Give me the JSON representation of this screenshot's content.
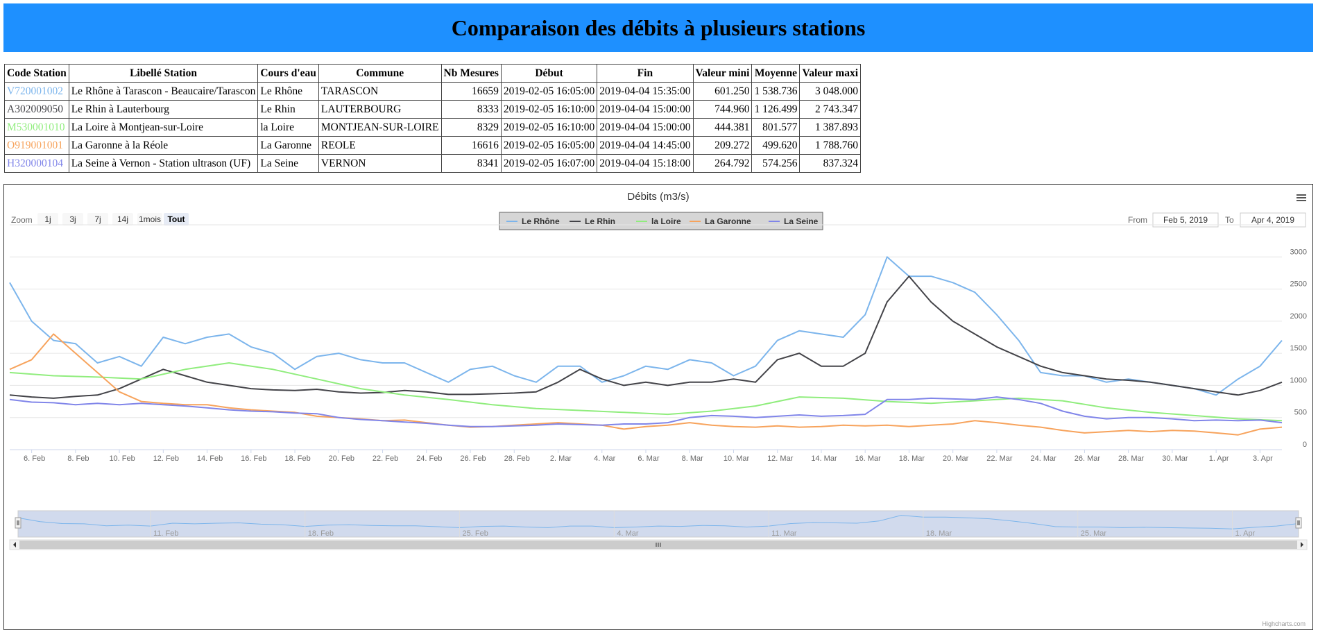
{
  "page": {
    "title": "Comparaison des débits à plusieurs stations"
  },
  "table": {
    "headers": [
      "Code Station",
      "Libellé Station",
      "Cours d'eau",
      "Commune",
      "Nb Mesures",
      "Début",
      "Fin",
      "Valeur mini",
      "Moyenne",
      "Valeur maxi"
    ],
    "rows": [
      {
        "code": "V720001002",
        "code_color": "#7cb5ec",
        "libelle": "Le Rhône à Tarascon - Beaucaire/Tarascon",
        "cours": "Le Rhône",
        "commune": "TARASCON",
        "nb": "16659",
        "debut": "2019-02-05 16:05:00",
        "fin": "2019-04-04 15:35:00",
        "mini": "601.250",
        "moyenne": "1 538.736",
        "maxi": "3 048.000"
      },
      {
        "code": "A302009050",
        "code_color": "#434348",
        "libelle": "Le Rhin à Lauterbourg",
        "cours": "Le Rhin",
        "commune": "LAUTERBOURG",
        "nb": "8333",
        "debut": "2019-02-05 16:10:00",
        "fin": "2019-04-04 15:00:00",
        "mini": "744.960",
        "moyenne": "1 126.499",
        "maxi": "2 743.347"
      },
      {
        "code": "M530001010",
        "code_color": "#90ed7d",
        "libelle": "La Loire à Montjean-sur-Loire",
        "cours": "la Loire",
        "commune": "MONTJEAN-SUR-LOIRE",
        "nb": "8329",
        "debut": "2019-02-05 16:10:00",
        "fin": "2019-04-04 15:00:00",
        "mini": "444.381",
        "moyenne": "801.577",
        "maxi": "1 387.893"
      },
      {
        "code": "O919001001",
        "code_color": "#f7a35c",
        "libelle": "La Garonne à la Réole",
        "cours": "La Garonne",
        "commune": "REOLE",
        "nb": "16616",
        "debut": "2019-02-05 16:05:00",
        "fin": "2019-04-04 14:45:00",
        "mini": "209.272",
        "moyenne": "499.620",
        "maxi": "1 788.760"
      },
      {
        "code": "H320000104",
        "code_color": "#8085e9",
        "libelle": "La Seine à Vernon - Station ultrason (UF)",
        "cours": "La Seine",
        "commune": "VERNON",
        "nb": "8341",
        "debut": "2019-02-05 16:07:00",
        "fin": "2019-04-04 15:18:00",
        "mini": "264.792",
        "moyenne": "574.256",
        "maxi": "837.324"
      }
    ]
  },
  "chart_data": {
    "type": "line",
    "title": "Débits (m3/s)",
    "x_range": [
      "2019-02-05",
      "2019-04-04"
    ],
    "ylim": [
      0,
      3500
    ],
    "y_ticks": [
      0,
      500,
      1000,
      1500,
      2000,
      2500,
      3000
    ],
    "x_ticks": [
      "6. Feb",
      "8. Feb",
      "10. Feb",
      "12. Feb",
      "14. Feb",
      "16. Feb",
      "18. Feb",
      "20. Feb",
      "22. Feb",
      "24. Feb",
      "26. Feb",
      "28. Feb",
      "2. Mar",
      "4. Mar",
      "6. Mar",
      "8. Mar",
      "10. Mar",
      "12. Mar",
      "14. Mar",
      "16. Mar",
      "18. Mar",
      "20. Mar",
      "22. Mar",
      "24. Mar",
      "26. Mar",
      "28. Mar",
      "30. Mar",
      "1. Apr",
      "3. Apr"
    ],
    "navigator_ticks": [
      "11. Feb",
      "18. Feb",
      "25. Feb",
      "4. Mar",
      "11. Mar",
      "18. Mar",
      "25. Mar",
      "1. Apr"
    ],
    "grid": true,
    "legend": "top-center",
    "series": [
      {
        "name": "Le Rhône",
        "color": "#7cb5ec",
        "x": [
          "2019-02-05",
          "2019-02-06",
          "2019-02-07",
          "2019-02-08",
          "2019-02-09",
          "2019-02-10",
          "2019-02-11",
          "2019-02-12",
          "2019-02-13",
          "2019-02-14",
          "2019-02-15",
          "2019-02-16",
          "2019-02-17",
          "2019-02-18",
          "2019-02-19",
          "2019-02-20",
          "2019-02-21",
          "2019-02-22",
          "2019-02-23",
          "2019-02-24",
          "2019-02-25",
          "2019-02-26",
          "2019-02-27",
          "2019-02-28",
          "2019-03-01",
          "2019-03-02",
          "2019-03-03",
          "2019-03-04",
          "2019-03-05",
          "2019-03-06",
          "2019-03-07",
          "2019-03-08",
          "2019-03-09",
          "2019-03-10",
          "2019-03-11",
          "2019-03-12",
          "2019-03-13",
          "2019-03-14",
          "2019-03-15",
          "2019-03-16",
          "2019-03-17",
          "2019-03-18",
          "2019-03-19",
          "2019-03-20",
          "2019-03-21",
          "2019-03-22",
          "2019-03-23",
          "2019-03-24",
          "2019-03-25",
          "2019-03-26",
          "2019-03-27",
          "2019-03-28",
          "2019-03-29",
          "2019-03-30",
          "2019-03-31",
          "2019-04-01",
          "2019-04-02",
          "2019-04-03",
          "2019-04-04"
        ],
        "values": [
          2600,
          2000,
          1700,
          1650,
          1350,
          1450,
          1300,
          1750,
          1650,
          1750,
          1800,
          1600,
          1500,
          1250,
          1450,
          1500,
          1400,
          1350,
          1350,
          1200,
          1050,
          1250,
          1300,
          1150,
          1050,
          1300,
          1300,
          1050,
          1150,
          1300,
          1250,
          1400,
          1350,
          1150,
          1300,
          1700,
          1850,
          1800,
          1750,
          2100,
          3000,
          2700,
          2700,
          2600,
          2450,
          2100,
          1700,
          1200,
          1150,
          1150,
          1050,
          1100,
          1050,
          1000,
          950,
          850,
          1100,
          1300,
          1700
        ]
      },
      {
        "name": "Le Rhin",
        "color": "#434348",
        "x": [
          "2019-02-05",
          "2019-02-06",
          "2019-02-07",
          "2019-02-08",
          "2019-02-09",
          "2019-02-10",
          "2019-02-11",
          "2019-02-12",
          "2019-02-13",
          "2019-02-14",
          "2019-02-15",
          "2019-02-16",
          "2019-02-17",
          "2019-02-18",
          "2019-02-19",
          "2019-02-20",
          "2019-02-21",
          "2019-02-22",
          "2019-02-23",
          "2019-02-24",
          "2019-02-25",
          "2019-02-26",
          "2019-02-27",
          "2019-02-28",
          "2019-03-01",
          "2019-03-02",
          "2019-03-03",
          "2019-03-04",
          "2019-03-05",
          "2019-03-06",
          "2019-03-07",
          "2019-03-08",
          "2019-03-09",
          "2019-03-10",
          "2019-03-11",
          "2019-03-12",
          "2019-03-13",
          "2019-03-14",
          "2019-03-15",
          "2019-03-16",
          "2019-03-17",
          "2019-03-18",
          "2019-03-19",
          "2019-03-20",
          "2019-03-21",
          "2019-03-22",
          "2019-03-23",
          "2019-03-24",
          "2019-03-25",
          "2019-03-26",
          "2019-03-27",
          "2019-03-28",
          "2019-03-29",
          "2019-03-30",
          "2019-03-31",
          "2019-04-01",
          "2019-04-02",
          "2019-04-03",
          "2019-04-04"
        ],
        "values": [
          850,
          820,
          800,
          830,
          850,
          950,
          1100,
          1250,
          1150,
          1050,
          1000,
          950,
          930,
          920,
          940,
          900,
          880,
          890,
          920,
          900,
          860,
          860,
          870,
          880,
          900,
          1050,
          1250,
          1100,
          1000,
          1050,
          1000,
          1050,
          1050,
          1100,
          1050,
          1400,
          1500,
          1300,
          1300,
          1500,
          2300,
          2700,
          2300,
          2000,
          1800,
          1600,
          1450,
          1300,
          1200,
          1150,
          1100,
          1080,
          1050,
          1000,
          950,
          900,
          850,
          920,
          1050
        ]
      },
      {
        "name": "la Loire",
        "color": "#90ed7d",
        "x": [
          "2019-02-05",
          "2019-02-07",
          "2019-02-09",
          "2019-02-11",
          "2019-02-13",
          "2019-02-15",
          "2019-02-17",
          "2019-02-19",
          "2019-02-21",
          "2019-02-23",
          "2019-02-25",
          "2019-02-27",
          "2019-03-01",
          "2019-03-03",
          "2019-03-05",
          "2019-03-07",
          "2019-03-09",
          "2019-03-11",
          "2019-03-13",
          "2019-03-15",
          "2019-03-17",
          "2019-03-19",
          "2019-03-21",
          "2019-03-23",
          "2019-03-25",
          "2019-03-27",
          "2019-03-29",
          "2019-03-31",
          "2019-04-02",
          "2019-04-04"
        ],
        "values": [
          1200,
          1150,
          1130,
          1100,
          1250,
          1350,
          1250,
          1100,
          950,
          850,
          780,
          700,
          640,
          610,
          580,
          550,
          600,
          680,
          820,
          800,
          750,
          720,
          760,
          800,
          760,
          650,
          580,
          530,
          480,
          450
        ]
      },
      {
        "name": "La Garonne",
        "color": "#f7a35c",
        "x": [
          "2019-02-05",
          "2019-02-06",
          "2019-02-07",
          "2019-02-08",
          "2019-02-09",
          "2019-02-10",
          "2019-02-11",
          "2019-02-12",
          "2019-02-13",
          "2019-02-14",
          "2019-02-15",
          "2019-02-16",
          "2019-02-17",
          "2019-02-18",
          "2019-02-19",
          "2019-02-20",
          "2019-02-21",
          "2019-02-22",
          "2019-02-23",
          "2019-02-24",
          "2019-02-25",
          "2019-02-26",
          "2019-02-27",
          "2019-02-28",
          "2019-03-01",
          "2019-03-02",
          "2019-03-03",
          "2019-03-04",
          "2019-03-05",
          "2019-03-06",
          "2019-03-07",
          "2019-03-08",
          "2019-03-09",
          "2019-03-10",
          "2019-03-11",
          "2019-03-12",
          "2019-03-13",
          "2019-03-14",
          "2019-03-15",
          "2019-03-16",
          "2019-03-17",
          "2019-03-18",
          "2019-03-19",
          "2019-03-20",
          "2019-03-21",
          "2019-03-22",
          "2019-03-23",
          "2019-03-24",
          "2019-03-25",
          "2019-03-26",
          "2019-03-27",
          "2019-03-28",
          "2019-03-29",
          "2019-03-30",
          "2019-03-31",
          "2019-04-01",
          "2019-04-02",
          "2019-04-03",
          "2019-04-04"
        ],
        "values": [
          1250,
          1400,
          1800,
          1500,
          1200,
          900,
          750,
          720,
          700,
          700,
          650,
          620,
          600,
          580,
          520,
          500,
          480,
          450,
          460,
          420,
          380,
          350,
          360,
          380,
          400,
          420,
          400,
          380,
          320,
          360,
          380,
          420,
          380,
          360,
          350,
          370,
          350,
          360,
          380,
          370,
          380,
          360,
          380,
          400,
          450,
          420,
          380,
          350,
          300,
          260,
          280,
          300,
          280,
          300,
          290,
          260,
          230,
          320,
          350
        ]
      },
      {
        "name": "La Seine",
        "color": "#8085e9",
        "x": [
          "2019-02-05",
          "2019-02-06",
          "2019-02-07",
          "2019-02-08",
          "2019-02-09",
          "2019-02-10",
          "2019-02-11",
          "2019-02-12",
          "2019-02-13",
          "2019-02-14",
          "2019-02-15",
          "2019-02-16",
          "2019-02-17",
          "2019-02-18",
          "2019-02-19",
          "2019-02-20",
          "2019-02-21",
          "2019-02-22",
          "2019-02-23",
          "2019-02-24",
          "2019-02-25",
          "2019-02-26",
          "2019-02-27",
          "2019-02-28",
          "2019-03-01",
          "2019-03-02",
          "2019-03-03",
          "2019-03-04",
          "2019-03-05",
          "2019-03-06",
          "2019-03-07",
          "2019-03-08",
          "2019-03-09",
          "2019-03-10",
          "2019-03-11",
          "2019-03-12",
          "2019-03-13",
          "2019-03-14",
          "2019-03-15",
          "2019-03-16",
          "2019-03-17",
          "2019-03-18",
          "2019-03-19",
          "2019-03-20",
          "2019-03-21",
          "2019-03-22",
          "2019-03-23",
          "2019-03-24",
          "2019-03-25",
          "2019-03-26",
          "2019-03-27",
          "2019-03-28",
          "2019-03-29",
          "2019-03-30",
          "2019-03-31",
          "2019-04-01",
          "2019-04-02",
          "2019-04-03",
          "2019-04-04"
        ],
        "values": [
          780,
          740,
          730,
          700,
          720,
          700,
          720,
          700,
          680,
          650,
          620,
          600,
          590,
          570,
          560,
          500,
          470,
          450,
          430,
          410,
          380,
          360,
          360,
          370,
          380,
          400,
          390,
          380,
          400,
          400,
          420,
          500,
          530,
          520,
          500,
          520,
          540,
          520,
          530,
          550,
          780,
          780,
          800,
          790,
          780,
          820,
          780,
          720,
          600,
          520,
          480,
          500,
          500,
          480,
          450,
          460,
          450,
          460,
          420
        ]
      }
    ]
  },
  "controls": {
    "zoom_label": "Zoom",
    "zoom_buttons": [
      "1j",
      "3j",
      "7j",
      "14j",
      "1mois",
      "Tout"
    ],
    "zoom_selected": "Tout",
    "from_label": "From",
    "from_value": "Feb 5, 2019",
    "to_label": "To",
    "to_value": "Apr 4, 2019"
  },
  "credits": "Highcharts.com"
}
